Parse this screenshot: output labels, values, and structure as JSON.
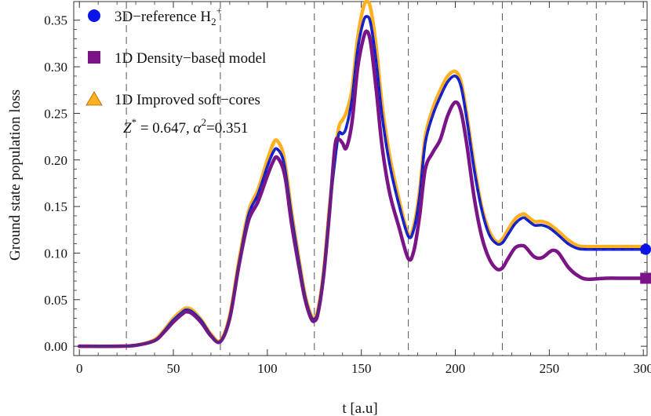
{
  "chart_data": {
    "type": "line",
    "title": "",
    "xlabel": "t  [a.u]",
    "ylabel": "Ground  state  population  loss",
    "xlim": [
      -3,
      302
    ],
    "ylim": [
      -0.01,
      0.37
    ],
    "x_ticks": [
      0,
      50,
      100,
      150,
      200,
      250,
      300
    ],
    "x_tick_labels": [
      "0",
      "50",
      "100",
      "150",
      "200",
      "250",
      "300"
    ],
    "y_ticks": [
      0.0,
      0.05,
      0.1,
      0.15,
      0.2,
      0.25,
      0.3,
      0.35
    ],
    "y_tick_labels": [
      "0.00",
      "0.05",
      "0.10",
      "0.15",
      "0.20",
      "0.25",
      "0.30",
      "0.35"
    ],
    "vertical_dashed_lines": [
      25,
      75,
      125,
      175,
      225,
      275
    ],
    "legend": {
      "placement": "top-left",
      "entries": [
        {
          "label_main": "3D−reference H",
          "label_sub": "2",
          "label_sup": "+",
          "marker": "circle",
          "color": "#0a14e6"
        },
        {
          "label_main": "1D Density−based model",
          "marker": "square",
          "color": "#7a1487"
        },
        {
          "label_main": "1D Improved soft−cores",
          "marker": "triangle",
          "color": "#ffb020"
        }
      ]
    },
    "annotation": {
      "z_symbol": "Z",
      "z_sup": "*",
      "z_rest": " = 0.647, ",
      "alpha_symbol": "α",
      "alpha_sup": "2",
      "alpha_rest": "=0.351"
    },
    "end_markers": [
      {
        "series": "3D−reference H2+",
        "x": 300,
        "y": 0.104,
        "marker": "circle"
      },
      {
        "series": "1D Density−based model",
        "x": 300,
        "y": 0.073,
        "marker": "square"
      }
    ],
    "series": [
      {
        "name": "1D Improved soft−cores",
        "color": "#ffb020",
        "style": "solid-thick",
        "x": [
          0,
          20,
          30,
          40,
          45,
          50,
          55,
          57,
          60,
          65,
          70,
          75,
          80,
          85,
          90,
          95,
          100,
          103,
          105,
          108,
          110,
          113,
          117,
          120,
          123,
          125,
          127,
          130,
          133,
          136,
          138,
          140,
          142,
          145,
          148,
          151,
          153,
          155,
          158,
          161,
          165,
          170,
          175,
          178,
          181,
          184,
          188,
          192,
          196,
          200,
          203,
          206,
          210,
          214,
          218,
          222,
          225,
          228,
          232,
          236,
          238,
          242,
          246,
          250,
          255,
          260,
          265,
          270,
          280,
          290,
          300
        ],
        "y": [
          0.0,
          0.0,
          0.001,
          0.007,
          0.017,
          0.03,
          0.039,
          0.041,
          0.039,
          0.028,
          0.013,
          0.006,
          0.033,
          0.093,
          0.145,
          0.168,
          0.2,
          0.217,
          0.221,
          0.21,
          0.188,
          0.143,
          0.091,
          0.056,
          0.035,
          0.031,
          0.04,
          0.081,
          0.148,
          0.205,
          0.235,
          0.243,
          0.251,
          0.275,
          0.33,
          0.363,
          0.37,
          0.362,
          0.32,
          0.26,
          0.205,
          0.158,
          0.12,
          0.13,
          0.167,
          0.225,
          0.255,
          0.275,
          0.29,
          0.295,
          0.284,
          0.25,
          0.195,
          0.15,
          0.124,
          0.112,
          0.115,
          0.125,
          0.137,
          0.142,
          0.14,
          0.134,
          0.134,
          0.131,
          0.123,
          0.114,
          0.108,
          0.107,
          0.107,
          0.107,
          0.107
        ]
      },
      {
        "name": "3D−reference H2+",
        "color": "#0a14e6",
        "style": "solid",
        "x": [
          0,
          20,
          30,
          40,
          45,
          50,
          55,
          57,
          60,
          65,
          70,
          75,
          80,
          85,
          90,
          95,
          100,
          103,
          105,
          108,
          110,
          113,
          117,
          120,
          123,
          125,
          127,
          130,
          133,
          136,
          138,
          140,
          142,
          145,
          148,
          151,
          153,
          155,
          158,
          161,
          165,
          170,
          175,
          178,
          181,
          184,
          188,
          192,
          196,
          200,
          203,
          206,
          210,
          214,
          218,
          222,
          225,
          228,
          232,
          236,
          238,
          242,
          246,
          250,
          255,
          260,
          265,
          270,
          280,
          290,
          300
        ],
        "y": [
          0.0,
          0.0,
          0.001,
          0.006,
          0.016,
          0.028,
          0.037,
          0.039,
          0.037,
          0.027,
          0.012,
          0.005,
          0.031,
          0.09,
          0.141,
          0.163,
          0.193,
          0.208,
          0.212,
          0.203,
          0.182,
          0.138,
          0.088,
          0.054,
          0.033,
          0.029,
          0.038,
          0.079,
          0.145,
          0.2,
          0.228,
          0.228,
          0.235,
          0.265,
          0.318,
          0.348,
          0.354,
          0.346,
          0.304,
          0.248,
          0.196,
          0.152,
          0.118,
          0.126,
          0.161,
          0.218,
          0.248,
          0.268,
          0.284,
          0.29,
          0.279,
          0.245,
          0.19,
          0.147,
          0.12,
          0.11,
          0.111,
          0.12,
          0.132,
          0.138,
          0.136,
          0.13,
          0.13,
          0.127,
          0.119,
          0.11,
          0.105,
          0.104,
          0.104,
          0.104,
          0.104
        ]
      },
      {
        "name": "1D Density−based model",
        "color": "#7a1487",
        "style": "solid-thick",
        "x": [
          0,
          20,
          30,
          40,
          45,
          50,
          55,
          57,
          60,
          65,
          70,
          75,
          80,
          85,
          90,
          95,
          100,
          103,
          105,
          108,
          110,
          113,
          117,
          120,
          123,
          125,
          127,
          130,
          133,
          136,
          138,
          140,
          142,
          145,
          148,
          151,
          153,
          155,
          158,
          161,
          165,
          170,
          175,
          178,
          181,
          184,
          188,
          192,
          196,
          200,
          203,
          206,
          210,
          214,
          218,
          222,
          225,
          228,
          232,
          236,
          238,
          242,
          246,
          250,
          252,
          255,
          260,
          265,
          270,
          280,
          290,
          300
        ],
        "y": [
          0.0,
          0.0,
          0.001,
          0.006,
          0.015,
          0.026,
          0.035,
          0.037,
          0.035,
          0.025,
          0.011,
          0.005,
          0.03,
          0.088,
          0.135,
          0.155,
          0.183,
          0.198,
          0.203,
          0.193,
          0.175,
          0.13,
          0.083,
          0.051,
          0.031,
          0.027,
          0.036,
          0.077,
          0.142,
          0.215,
          0.222,
          0.218,
          0.213,
          0.24,
          0.298,
          0.33,
          0.338,
          0.325,
          0.274,
          0.215,
          0.165,
          0.128,
          0.094,
          0.103,
          0.14,
          0.19,
          0.208,
          0.222,
          0.248,
          0.262,
          0.252,
          0.218,
          0.16,
          0.118,
          0.094,
          0.083,
          0.084,
          0.094,
          0.106,
          0.108,
          0.105,
          0.096,
          0.095,
          0.101,
          0.103,
          0.1,
          0.085,
          0.076,
          0.072,
          0.073,
          0.073,
          0.073
        ]
      },
      {
        "name": "dashed overlay",
        "color": "#2a3f7a",
        "style": "dashed",
        "x": [
          0,
          20,
          30,
          40,
          45,
          50,
          55,
          57,
          60,
          65,
          70,
          75,
          80,
          85,
          90,
          95,
          100,
          103,
          105,
          108,
          110,
          113,
          117,
          120,
          123,
          125,
          127,
          130,
          133,
          136,
          138,
          140,
          142,
          145,
          148,
          151,
          153,
          155,
          158,
          161,
          165,
          170,
          175,
          178,
          181,
          184,
          188,
          192,
          196,
          200,
          203,
          206,
          210,
          214,
          218,
          222,
          225,
          228,
          232,
          236,
          238,
          242,
          246,
          250,
          255,
          260,
          265,
          270,
          280,
          290,
          300
        ],
        "y": [
          0.0,
          0.0,
          0.001,
          0.006,
          0.016,
          0.028,
          0.037,
          0.039,
          0.037,
          0.027,
          0.012,
          0.005,
          0.031,
          0.09,
          0.141,
          0.163,
          0.193,
          0.208,
          0.212,
          0.203,
          0.182,
          0.138,
          0.088,
          0.054,
          0.033,
          0.029,
          0.038,
          0.079,
          0.145,
          0.2,
          0.228,
          0.228,
          0.235,
          0.265,
          0.318,
          0.348,
          0.354,
          0.346,
          0.304,
          0.248,
          0.196,
          0.152,
          0.118,
          0.126,
          0.161,
          0.218,
          0.248,
          0.268,
          0.284,
          0.29,
          0.279,
          0.245,
          0.19,
          0.147,
          0.12,
          0.11,
          0.111,
          0.12,
          0.132,
          0.138,
          0.136,
          0.13,
          0.13,
          0.127,
          0.119,
          0.11,
          0.105,
          0.104,
          0.104,
          0.104,
          0.104
        ]
      }
    ]
  }
}
